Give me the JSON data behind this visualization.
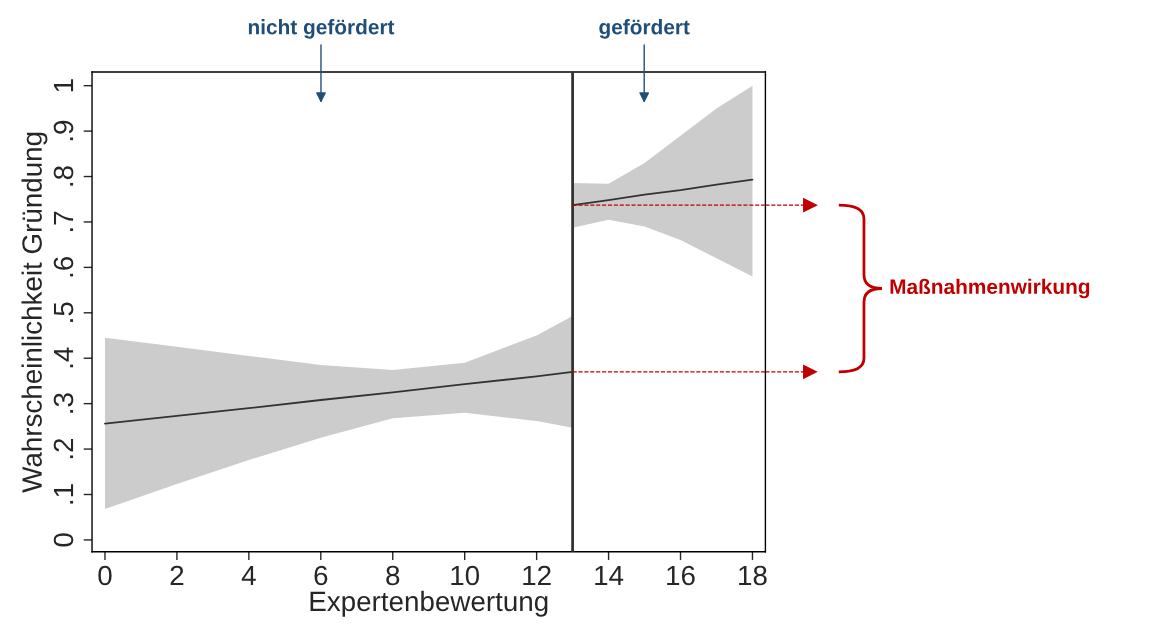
{
  "chart_data": {
    "type": "line",
    "xlabel": "Expertenbewertung",
    "ylabel": "Wahrscheinlichkeit Gründung",
    "series": [
      {
        "color": "#333333",
        "x": [
          0,
          2,
          4,
          6,
          8,
          10,
          12,
          13
        ],
        "values": [
          0.256,
          0.273,
          0.29,
          0.308,
          0.325,
          0.343,
          0.36,
          0.37
        ],
        "lower": [
          0.068,
          0.123,
          0.176,
          0.225,
          0.268,
          0.28,
          0.262,
          0.247
        ],
        "upper": [
          0.445,
          0.425,
          0.405,
          0.385,
          0.374,
          0.39,
          0.45,
          0.493
        ]
      },
      {
        "color": "#333333",
        "x": [
          13,
          14,
          15,
          16,
          17,
          18
        ],
        "values": [
          0.737,
          0.748,
          0.76,
          0.77,
          0.782,
          0.793
        ],
        "lower": [
          0.687,
          0.705,
          0.69,
          0.66,
          0.62,
          0.58
        ],
        "upper": [
          0.786,
          0.784,
          0.83,
          0.89,
          0.95,
          1.0
        ]
      }
    ],
    "xlim": [
      -0.36,
      18.36
    ],
    "ylim": [
      -0.026,
      1.03
    ],
    "xticks": [
      0,
      2,
      4,
      6,
      8,
      10,
      12,
      14,
      16,
      18
    ],
    "yticks": [
      0,
      {
        "value": 0.1,
        "label": ".1"
      },
      {
        "value": 0.2,
        "label": ".2"
      },
      {
        "value": 0.3,
        "label": ".3"
      },
      {
        "value": 0.4,
        "label": ".4"
      },
      {
        "value": 0.5,
        "label": ".5"
      },
      {
        "value": 0.6,
        "label": ".6"
      },
      {
        "value": 0.7,
        "label": ".7"
      },
      {
        "value": 0.8,
        "label": ".8"
      },
      {
        "value": 0.9,
        "label": ".9"
      },
      1
    ],
    "ref_lines": [
      {
        "axis": "x",
        "value": 13,
        "color": "#333333",
        "line_style": "solid"
      },
      {
        "axis": "y",
        "value": 0.737,
        "color": "#c00000",
        "line_style": "dashed"
      },
      {
        "axis": "y",
        "value": 0.37,
        "color": "#c00000",
        "line_style": "dashed"
      }
    ],
    "annotations": [
      "nicht gefördert",
      "gefördert",
      "Maßnahmenwirkung"
    ],
    "grid": false
  }
}
